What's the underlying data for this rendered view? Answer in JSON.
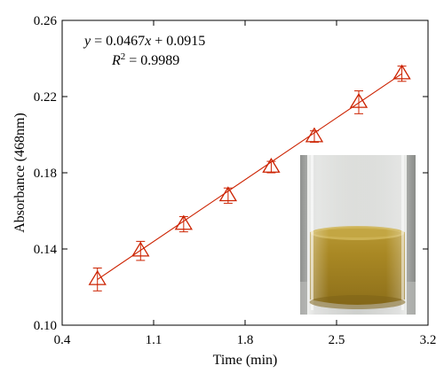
{
  "chart_data": {
    "type": "scatter",
    "xlabel": "Time (min)",
    "ylabel": "Absorbance (468nm)",
    "xlim": [
      0.4,
      3.2
    ],
    "ylim": [
      0.1,
      0.26
    ],
    "x_ticks": [
      "0.4",
      "1.1",
      "1.8",
      "2.5",
      "3.2"
    ],
    "y_ticks": [
      "0.10",
      "0.14",
      "0.18",
      "0.22",
      "0.26"
    ],
    "grid": false,
    "series": [
      {
        "marker": "open-triangle",
        "color": "#cc2200",
        "x": [
          0.67,
          1.0,
          1.33,
          1.67,
          2.0,
          2.33,
          2.67,
          3.0
        ],
        "y": [
          0.124,
          0.139,
          0.153,
          0.168,
          0.183,
          0.199,
          0.217,
          0.232
        ],
        "error": [
          0.006,
          0.005,
          0.004,
          0.004,
          0.003,
          0.003,
          0.006,
          0.004
        ]
      }
    ],
    "fit": {
      "slope": 0.0467,
      "intercept": 0.0915,
      "color": "#cc2200",
      "equation": {
        "y": "y",
        "eq": " = 0.0467",
        "x": "x",
        "rest": " + 0.0915"
      },
      "r2": {
        "r": "R",
        "sup": "2",
        "rest": " = 0.9989"
      }
    },
    "inset": {
      "kind": "photo",
      "subject": "amber-liquid-vial"
    }
  }
}
